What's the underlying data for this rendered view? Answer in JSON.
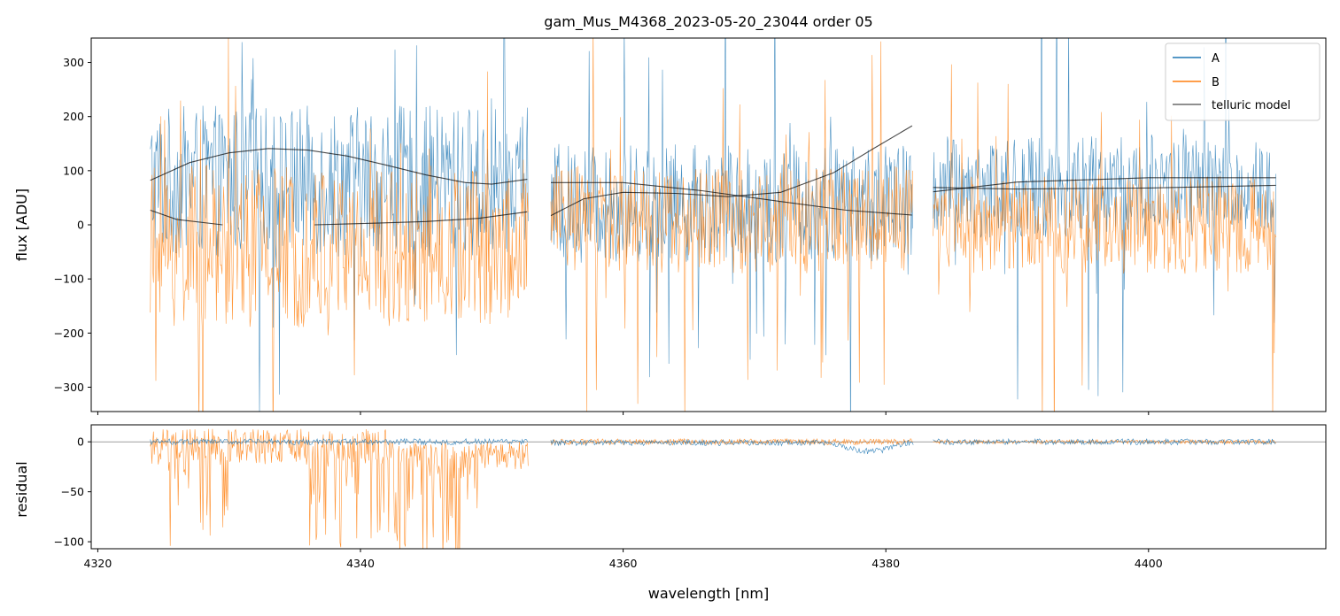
{
  "chart_data": [
    {
      "type": "line",
      "panel": "flux",
      "title": "gam_Mus_M4368_2023-05-20_23044  order 05",
      "ylabel": "flux [ADU]",
      "xlabel": "",
      "xlim": [
        4319.5,
        4413.5
      ],
      "ylim": [
        -345,
        345
      ],
      "xticks": [
        4320,
        4340,
        4360,
        4380,
        4400
      ],
      "yticks": [
        -300,
        -200,
        -100,
        0,
        100,
        200,
        300
      ],
      "yticklabels": [
        "−300",
        "−200",
        "−100",
        "0",
        "100",
        "200",
        "300"
      ],
      "legend": {
        "position": "top-right",
        "entries": [
          "A",
          "B",
          "telluric model"
        ]
      },
      "series": [
        {
          "name": "A",
          "color": "#1f77b4",
          "kind": "noisy-spectrum",
          "segments": [
            {
              "x": [
                4324.0,
                4352.8
              ],
              "base": 80,
              "spread": 140
            },
            {
              "x": [
                4354.5,
                4382.1
              ],
              "base": 40,
              "spread": 110
            },
            {
              "x": [
                4383.6,
                4409.7
              ],
              "base": 70,
              "spread": 95
            }
          ]
        },
        {
          "name": "B",
          "color": "#ff7f0e",
          "kind": "noisy-spectrum",
          "segments": [
            {
              "x": [
                4324.0,
                4352.8
              ],
              "base": -40,
              "spread": 150
            },
            {
              "x": [
                4354.5,
                4382.1
              ],
              "base": 10,
              "spread": 100
            },
            {
              "x": [
                4383.6,
                4409.7
              ],
              "base": 0,
              "spread": 90
            }
          ]
        },
        {
          "name": "telluric model",
          "color": "#000000",
          "kind": "model",
          "curves": [
            {
              "x": [
                4324.0,
                4327.0,
                4330.0,
                4333.0,
                4336.0,
                4339.0,
                4342.0,
                4345.0,
                4348.0,
                4350.0,
                4352.7
              ],
              "y": [
                82,
                115,
                133,
                141,
                138,
                127,
                110,
                92,
                78,
                75,
                84
              ]
            },
            {
              "x": [
                4324.0,
                4326.0,
                4329.5
              ],
              "y": [
                27,
                10,
                0
              ]
            },
            {
              "x": [
                4336.5,
                4341.0,
                4345.0,
                4349.0,
                4352.7
              ],
              "y": [
                0,
                3,
                6,
                12,
                24
              ]
            },
            {
              "x": [
                4354.5,
                4357.0,
                4360.0,
                4364.0,
                4368.0,
                4372.0,
                4376.0,
                4379.0,
                4382.0
              ],
              "y": [
                17,
                48,
                60,
                58,
                52,
                60,
                96,
                140,
                183
              ]
            },
            {
              "x": [
                4354.5,
                4360.0,
                4366.0,
                4372.0,
                4377.0,
                4382.0
              ],
              "y": [
                78,
                78,
                63,
                43,
                27,
                18
              ]
            },
            {
              "x": [
                4383.6,
                4390.0,
                4400.0,
                4409.7
              ],
              "y": [
                69,
                66,
                68,
                73
              ]
            },
            {
              "x": [
                4383.6,
                4390.0,
                4400.0,
                4409.7
              ],
              "y": [
                61,
                79,
                87,
                87
              ]
            }
          ]
        }
      ]
    },
    {
      "type": "line",
      "panel": "residual",
      "ylabel": "residual",
      "xlabel": "wavelength [nm]",
      "xlim": [
        4319.5,
        4413.5
      ],
      "ylim": [
        -107,
        17
      ],
      "xticks": [
        4320,
        4340,
        4360,
        4380,
        4400
      ],
      "xticklabels": [
        "4320",
        "4340",
        "4360",
        "4380",
        "4400"
      ],
      "yticks": [
        -100,
        -50,
        0
      ],
      "yticklabels": [
        "−100",
        "−50",
        "0"
      ],
      "reference_line": 0,
      "series": [
        {
          "name": "A",
          "color": "#1f77b4",
          "kind": "residual",
          "segments": [
            {
              "x": [
                4324.0,
                4352.8
              ],
              "base": 0,
              "spread": 3
            },
            {
              "x": [
                4354.5,
                4382.1
              ],
              "base": -1,
              "spread": 3
            },
            {
              "x": [
                4383.6,
                4409.7
              ],
              "base": 0,
              "spread": 3
            }
          ],
          "dip": {
            "x": [
              4376.0,
              4382.0
            ],
            "min": -12
          }
        },
        {
          "name": "B",
          "color": "#ff7f0e",
          "kind": "residual",
          "segments": [
            {
              "x": [
                4324.0,
                4352.8
              ],
              "base": -5,
              "spread": 18
            },
            {
              "x": [
                4354.5,
                4382.1
              ],
              "base": 0,
              "spread": 3
            },
            {
              "x": [
                4383.6,
                4409.7
              ],
              "base": 0,
              "spread": 2
            }
          ],
          "deep_regions": [
            {
              "x": [
                4325.0,
                4330.0
              ],
              "min": -107
            },
            {
              "x": [
                4336.0,
                4349.0
              ],
              "min": -107
            }
          ]
        }
      ]
    }
  ]
}
